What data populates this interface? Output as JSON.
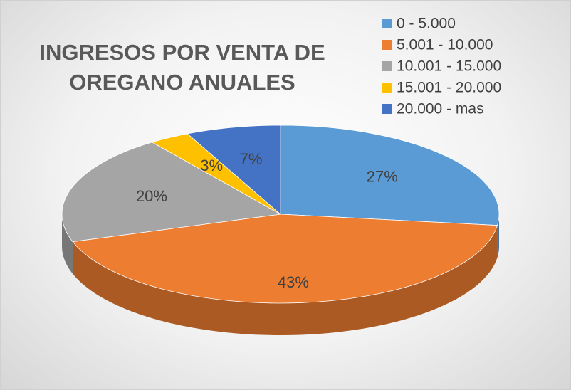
{
  "chart_data": {
    "type": "pie3d",
    "title": "INGRESOS POR VENTA DE OREGANO ANUALES",
    "categories": [
      "0 - 5.000",
      "5.001 - 10.000",
      "10.001 - 15.000",
      "15.001 - 20.000",
      "20.000 - mas"
    ],
    "values": [
      27,
      43,
      20,
      3,
      7
    ],
    "value_labels": [
      "27%",
      "43%",
      "20%",
      "3%",
      "7%"
    ],
    "colors": [
      "#5b9bd5",
      "#ed7d31",
      "#a5a5a5",
      "#ffc000",
      "#4472c4"
    ],
    "legend": "top-right"
  }
}
